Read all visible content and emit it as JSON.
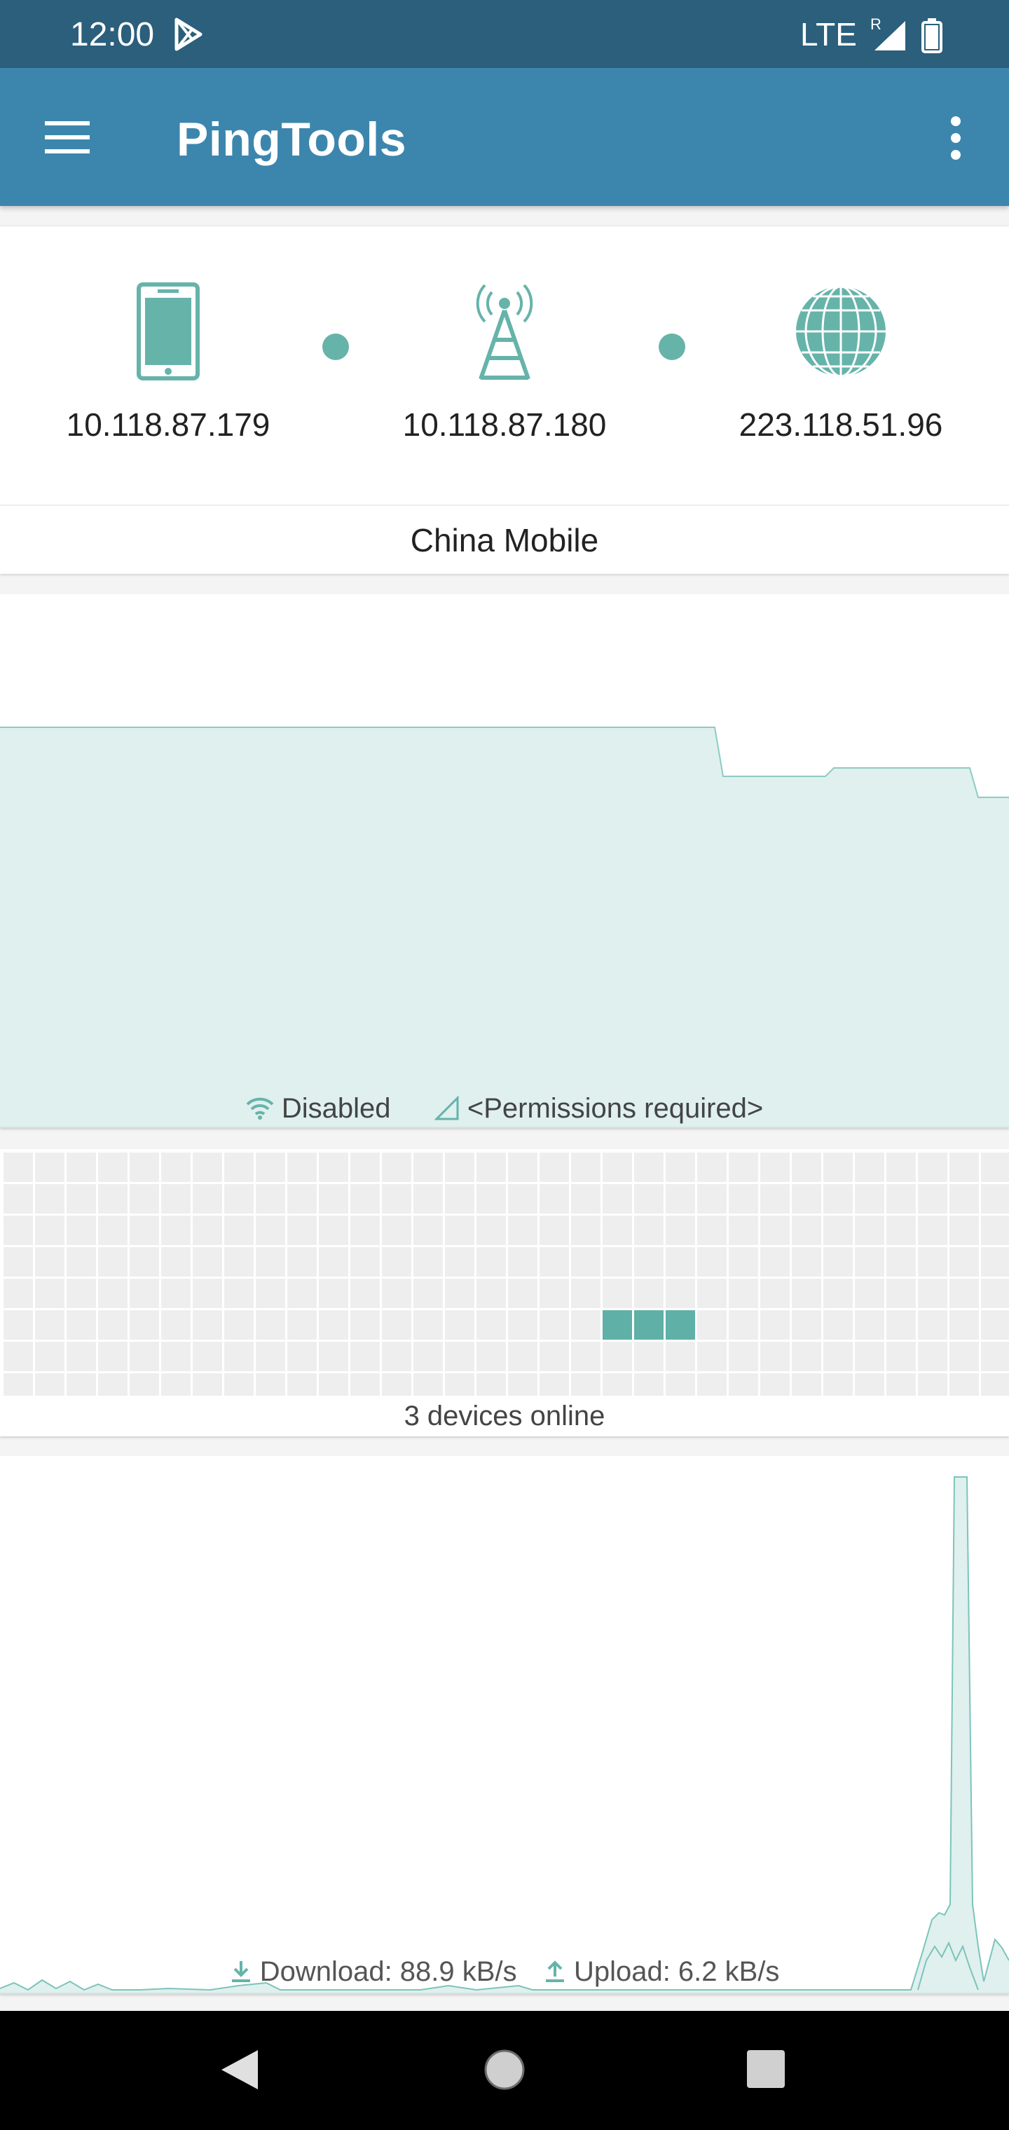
{
  "status_bar": {
    "time": "12:00",
    "network": "LTE",
    "roaming": "R",
    "icons": [
      "play-store-icon",
      "signal-icon",
      "battery-icon"
    ]
  },
  "app_bar": {
    "title": "PingTools",
    "icons": [
      "menu-icon",
      "more-vert-icon"
    ]
  },
  "network": {
    "device_ip": "10.118.87.179",
    "gateway_ip": "10.118.87.180",
    "public_ip": "223.118.51.96",
    "carrier": "China Mobile",
    "icons": [
      "phone-icon",
      "cell-tower-icon",
      "globe-icon"
    ]
  },
  "wifi": {
    "wifi_status": "Disabled",
    "cell_status": "<Permissions required>",
    "icons": [
      "wifi-icon",
      "cell-signal-outline-icon"
    ]
  },
  "devices": {
    "label": "3 devices online",
    "online_count": 3
  },
  "traffic": {
    "download": "Download: 88.9 kB/s",
    "upload": "Upload: 6.2 kB/s",
    "icons": [
      "download-icon",
      "upload-icon"
    ]
  },
  "colors": {
    "status_bar": "#2b5f7b",
    "app_bar": "#3c86ad",
    "accent": "#66b3aa",
    "chart_fill": "#dff0ee",
    "chart_line": "#7cc4bb",
    "grid_cell": "#eeeeee",
    "grid_active": "#5fb0a6"
  },
  "nav_bar": {
    "icons": [
      "back-icon",
      "home-icon",
      "recents-icon"
    ]
  }
}
